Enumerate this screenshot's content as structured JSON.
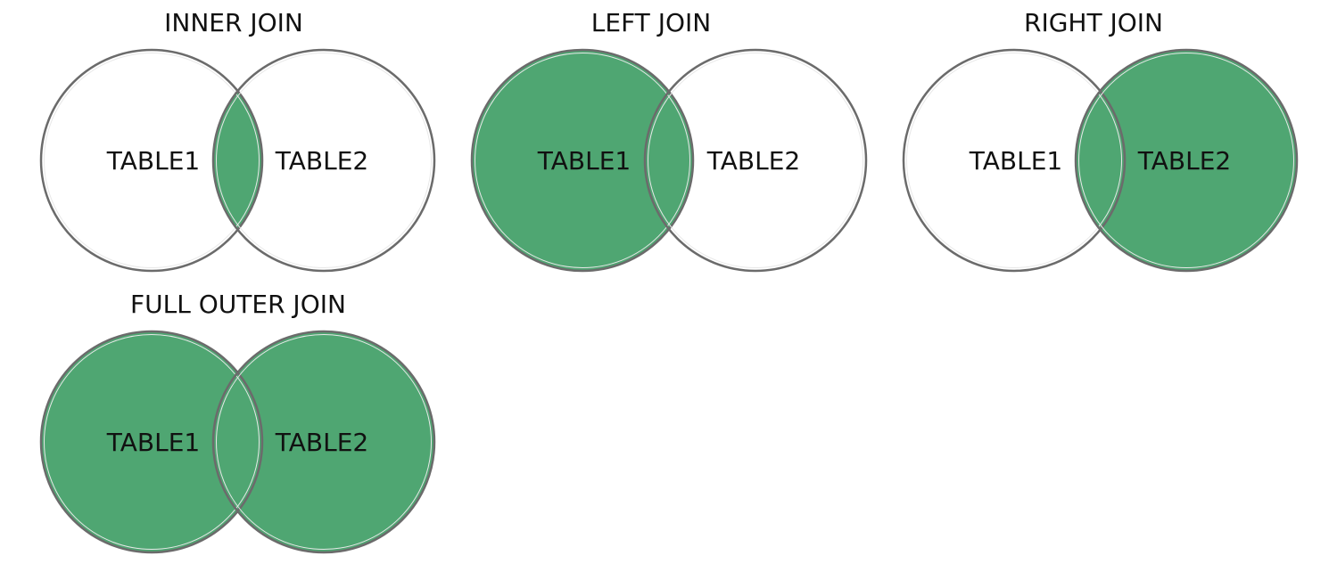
{
  "diagrams": [
    {
      "title": "INNER JOIN",
      "left_label": "TABLE1",
      "right_label": "TABLE2",
      "highlight": [
        "intersection"
      ]
    },
    {
      "title": "LEFT JOIN",
      "left_label": "TABLE1",
      "right_label": "TABLE2",
      "highlight": [
        "left",
        "intersection"
      ]
    },
    {
      "title": "RIGHT JOIN",
      "left_label": "TABLE1",
      "right_label": "TABLE2",
      "highlight": [
        "right",
        "intersection"
      ]
    },
    {
      "title": "FULL OUTER JOIN",
      "left_label": "TABLE1",
      "right_label": "TABLE2",
      "highlight": [
        "left",
        "intersection",
        "right"
      ]
    }
  ],
  "colors": {
    "highlight": "#4fa672",
    "outline": "#6b6b6b",
    "background": "#ffffff",
    "text": "#111111"
  }
}
